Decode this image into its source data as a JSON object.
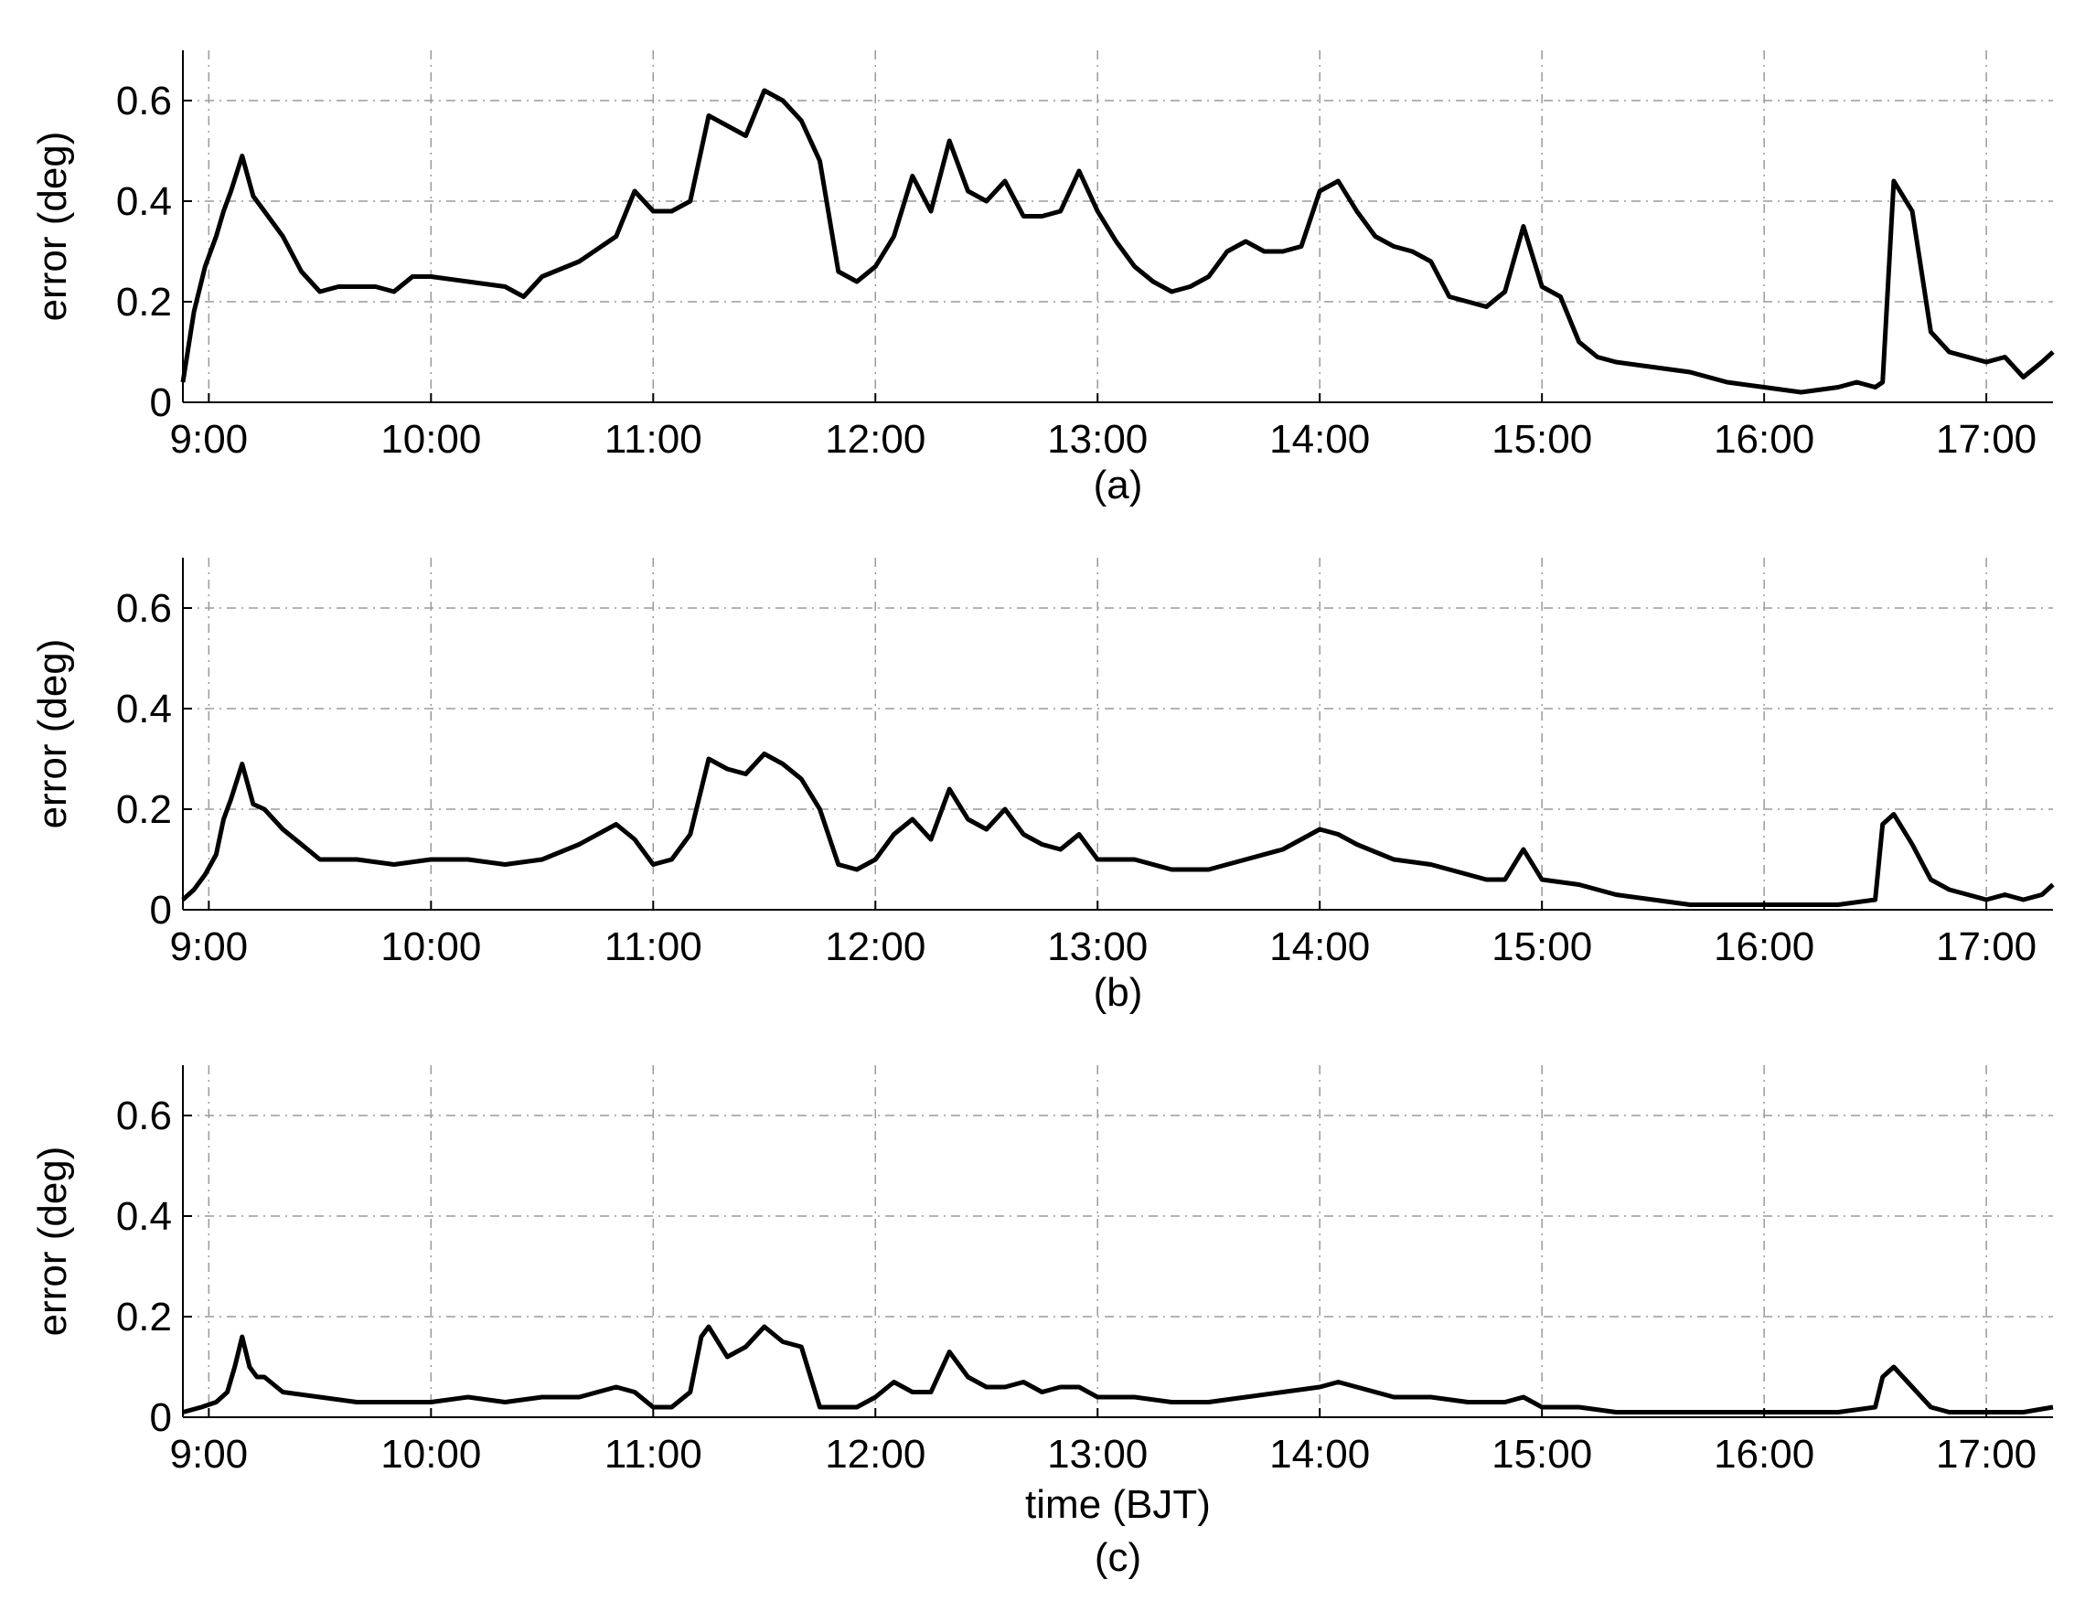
{
  "chart_data": [
    {
      "type": "line",
      "caption": "(a)",
      "xlabel": "",
      "ylabel": "error (deg)",
      "xlim": [
        "08:53",
        "17:18"
      ],
      "ylim": [
        0,
        0.7
      ],
      "xticks": [
        "9:00",
        "10:00",
        "11:00",
        "12:00",
        "13:00",
        "14:00",
        "15:00",
        "16:00",
        "17:00"
      ],
      "yticks": [
        "0",
        "0.2",
        "0.4",
        "0.6"
      ],
      "grid": true,
      "series": [
        {
          "x": [
            "08:53",
            "08:56",
            "08:59",
            "09:02",
            "09:04",
            "09:06",
            "09:09",
            "09:12",
            "09:15",
            "09:20",
            "09:25",
            "09:30",
            "09:35",
            "09:40",
            "09:45",
            "09:50",
            "09:55",
            "10:00",
            "10:10",
            "10:20",
            "10:25",
            "10:30",
            "10:40",
            "10:50",
            "10:55",
            "11:00",
            "11:05",
            "11:10",
            "11:15",
            "11:20",
            "11:25",
            "11:30",
            "11:35",
            "11:40",
            "11:45",
            "11:50",
            "11:55",
            "12:00",
            "12:05",
            "12:10",
            "12:15",
            "12:20",
            "12:25",
            "12:30",
            "12:35",
            "12:40",
            "12:45",
            "12:50",
            "12:55",
            "13:00",
            "13:05",
            "13:10",
            "13:15",
            "13:20",
            "13:25",
            "13:30",
            "13:35",
            "13:40",
            "13:45",
            "13:50",
            "13:55",
            "14:00",
            "14:05",
            "14:10",
            "14:15",
            "14:20",
            "14:25",
            "14:30",
            "14:35",
            "14:40",
            "14:45",
            "14:50",
            "14:55",
            "15:00",
            "15:05",
            "15:10",
            "15:15",
            "15:20",
            "15:30",
            "15:40",
            "15:50",
            "16:00",
            "16:10",
            "16:20",
            "16:25",
            "16:30",
            "16:32",
            "16:35",
            "16:40",
            "16:45",
            "16:50",
            "17:00",
            "17:05",
            "17:10",
            "17:15",
            "17:18"
          ],
          "y": [
            0.04,
            0.18,
            0.27,
            0.33,
            0.38,
            0.42,
            0.49,
            0.41,
            0.38,
            0.33,
            0.26,
            0.22,
            0.23,
            0.23,
            0.23,
            0.22,
            0.25,
            0.25,
            0.24,
            0.23,
            0.21,
            0.25,
            0.28,
            0.33,
            0.42,
            0.38,
            0.38,
            0.4,
            0.57,
            0.55,
            0.53,
            0.62,
            0.6,
            0.56,
            0.48,
            0.26,
            0.24,
            0.27,
            0.33,
            0.45,
            0.38,
            0.52,
            0.42,
            0.4,
            0.44,
            0.37,
            0.37,
            0.38,
            0.46,
            0.38,
            0.32,
            0.27,
            0.24,
            0.22,
            0.23,
            0.25,
            0.3,
            0.32,
            0.3,
            0.3,
            0.31,
            0.42,
            0.44,
            0.38,
            0.33,
            0.31,
            0.3,
            0.28,
            0.21,
            0.2,
            0.19,
            0.22,
            0.35,
            0.23,
            0.21,
            0.12,
            0.09,
            0.08,
            0.07,
            0.06,
            0.04,
            0.03,
            0.02,
            0.03,
            0.04,
            0.03,
            0.04,
            0.44,
            0.38,
            0.14,
            0.1,
            0.08,
            0.09,
            0.05,
            0.08,
            0.1
          ]
        }
      ]
    },
    {
      "type": "line",
      "caption": "(b)",
      "xlabel": "",
      "ylabel": "error (deg)",
      "xlim": [
        "08:53",
        "17:18"
      ],
      "ylim": [
        0,
        0.7
      ],
      "xticks": [
        "9:00",
        "10:00",
        "11:00",
        "12:00",
        "13:00",
        "14:00",
        "15:00",
        "16:00",
        "17:00"
      ],
      "yticks": [
        "0",
        "0.2",
        "0.4",
        "0.6"
      ],
      "grid": true,
      "series": [
        {
          "x": [
            "08:53",
            "08:56",
            "08:59",
            "09:02",
            "09:04",
            "09:06",
            "09:09",
            "09:12",
            "09:15",
            "09:20",
            "09:25",
            "09:30",
            "09:40",
            "09:50",
            "10:00",
            "10:10",
            "10:20",
            "10:30",
            "10:40",
            "10:50",
            "10:55",
            "11:00",
            "11:05",
            "11:10",
            "11:15",
            "11:20",
            "11:25",
            "11:30",
            "11:35",
            "11:40",
            "11:45",
            "11:50",
            "11:55",
            "12:00",
            "12:05",
            "12:10",
            "12:15",
            "12:20",
            "12:25",
            "12:30",
            "12:35",
            "12:40",
            "12:45",
            "12:50",
            "12:55",
            "13:00",
            "13:10",
            "13:20",
            "13:30",
            "13:40",
            "13:50",
            "14:00",
            "14:05",
            "14:10",
            "14:20",
            "14:30",
            "14:40",
            "14:45",
            "14:50",
            "14:55",
            "15:00",
            "15:10",
            "15:20",
            "15:30",
            "15:40",
            "15:50",
            "16:00",
            "16:10",
            "16:20",
            "16:30",
            "16:32",
            "16:35",
            "16:40",
            "16:45",
            "16:50",
            "17:00",
            "17:05",
            "17:10",
            "17:15",
            "17:18"
          ],
          "y": [
            0.02,
            0.04,
            0.07,
            0.11,
            0.18,
            0.22,
            0.29,
            0.21,
            0.2,
            0.16,
            0.13,
            0.1,
            0.1,
            0.09,
            0.1,
            0.1,
            0.09,
            0.1,
            0.13,
            0.17,
            0.14,
            0.09,
            0.1,
            0.15,
            0.3,
            0.28,
            0.27,
            0.31,
            0.29,
            0.26,
            0.2,
            0.09,
            0.08,
            0.1,
            0.15,
            0.18,
            0.14,
            0.24,
            0.18,
            0.16,
            0.2,
            0.15,
            0.13,
            0.12,
            0.15,
            0.1,
            0.1,
            0.08,
            0.08,
            0.1,
            0.12,
            0.16,
            0.15,
            0.13,
            0.1,
            0.09,
            0.07,
            0.06,
            0.06,
            0.12,
            0.06,
            0.05,
            0.03,
            0.02,
            0.01,
            0.01,
            0.01,
            0.01,
            0.01,
            0.02,
            0.17,
            0.19,
            0.13,
            0.06,
            0.04,
            0.02,
            0.03,
            0.02,
            0.03,
            0.05
          ]
        }
      ]
    },
    {
      "type": "line",
      "caption": "(c)",
      "xlabel": "time  (BJT)",
      "ylabel": "error (deg)",
      "xlim": [
        "08:53",
        "17:18"
      ],
      "ylim": [
        0,
        0.7
      ],
      "xticks": [
        "9:00",
        "10:00",
        "11:00",
        "12:00",
        "13:00",
        "14:00",
        "15:00",
        "16:00",
        "17:00"
      ],
      "yticks": [
        "0",
        "0.2",
        "0.4",
        "0.6"
      ],
      "grid": true,
      "series": [
        {
          "x": [
            "08:53",
            "08:58",
            "09:02",
            "09:05",
            "09:07",
            "09:09",
            "09:11",
            "09:13",
            "09:15",
            "09:20",
            "09:30",
            "09:40",
            "09:50",
            "10:00",
            "10:10",
            "10:20",
            "10:30",
            "10:40",
            "10:45",
            "10:50",
            "10:55",
            "11:00",
            "11:05",
            "11:10",
            "11:13",
            "11:15",
            "11:20",
            "11:25",
            "11:30",
            "11:35",
            "11:40",
            "11:45",
            "11:50",
            "11:55",
            "12:00",
            "12:05",
            "12:10",
            "12:15",
            "12:20",
            "12:25",
            "12:30",
            "12:35",
            "12:40",
            "12:45",
            "12:50",
            "12:55",
            "13:00",
            "13:10",
            "13:20",
            "13:30",
            "13:40",
            "13:50",
            "14:00",
            "14:05",
            "14:10",
            "14:20",
            "14:30",
            "14:40",
            "14:45",
            "14:50",
            "14:55",
            "15:00",
            "15:10",
            "15:20",
            "15:30",
            "15:40",
            "15:50",
            "16:00",
            "16:10",
            "16:20",
            "16:30",
            "16:32",
            "16:35",
            "16:40",
            "16:45",
            "16:50",
            "17:00",
            "17:10",
            "17:18"
          ],
          "y": [
            0.01,
            0.02,
            0.03,
            0.05,
            0.1,
            0.16,
            0.1,
            0.08,
            0.08,
            0.05,
            0.04,
            0.03,
            0.03,
            0.03,
            0.04,
            0.03,
            0.04,
            0.04,
            0.05,
            0.06,
            0.05,
            0.02,
            0.02,
            0.05,
            0.16,
            0.18,
            0.12,
            0.14,
            0.18,
            0.15,
            0.14,
            0.02,
            0.02,
            0.02,
            0.04,
            0.07,
            0.05,
            0.05,
            0.13,
            0.08,
            0.06,
            0.06,
            0.07,
            0.05,
            0.06,
            0.06,
            0.04,
            0.04,
            0.03,
            0.03,
            0.04,
            0.05,
            0.06,
            0.07,
            0.06,
            0.04,
            0.04,
            0.03,
            0.03,
            0.03,
            0.04,
            0.02,
            0.02,
            0.01,
            0.01,
            0.01,
            0.01,
            0.01,
            0.01,
            0.01,
            0.02,
            0.08,
            0.1,
            0.06,
            0.02,
            0.01,
            0.01,
            0.01,
            0.02
          ]
        }
      ]
    }
  ]
}
